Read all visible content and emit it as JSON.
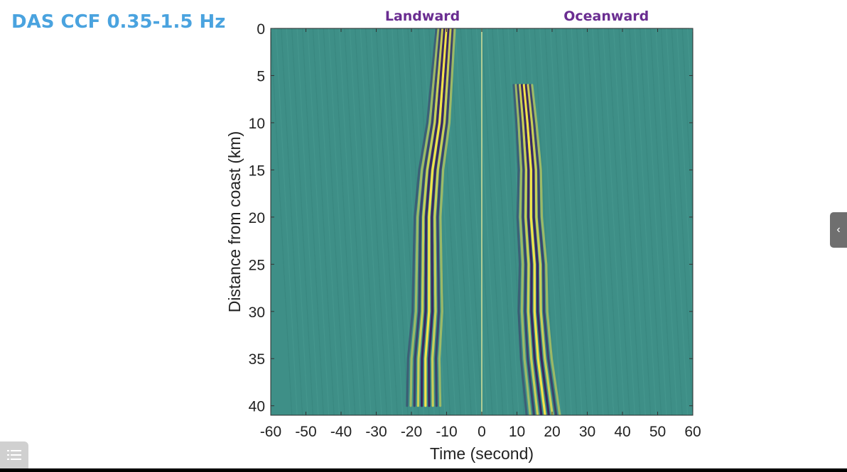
{
  "slide": {
    "title": "DAS CCF 0.35-1.5 Hz",
    "landward_label": "Landward",
    "oceanward_label": "Oceanward"
  },
  "colors": {
    "title": "#4aa3df",
    "annotation": "#6a2d91",
    "background_field": "#3e8f87",
    "positive": "#f4e34a",
    "negative": "#3a1a5c",
    "zero_line": "#d7e39a"
  },
  "icons": {
    "side_tab": "chevron-left-icon",
    "menu": "list-menu-icon"
  },
  "chart_data": {
    "type": "heatmap",
    "title": "",
    "xlabel": "Time (second)",
    "ylabel": "Distance from coast (km)",
    "xlim": [
      -60,
      60
    ],
    "ylim": [
      0,
      41
    ],
    "y_reversed": true,
    "xticks": [
      -60,
      -50,
      -40,
      -30,
      -20,
      -10,
      0,
      10,
      20,
      30,
      40,
      50,
      60
    ],
    "yticks": [
      0,
      5,
      10,
      15,
      20,
      25,
      30,
      35,
      40
    ],
    "colormap": "viridis-like (dark purple / teal / yellow)",
    "wavefronts": [
      {
        "name": "landward",
        "time_s": [
          -10,
          -11,
          -12,
          -14,
          -15,
          -15,
          -15,
          -16,
          -16
        ],
        "distance_km": [
          0,
          5,
          10,
          15,
          20,
          25,
          30,
          35,
          40
        ]
      },
      {
        "name": "oceanward",
        "time_s": [
          12,
          13,
          14,
          14,
          15,
          15,
          16,
          17,
          18
        ],
        "distance_km": [
          6,
          10,
          15,
          20,
          25,
          30,
          35,
          38,
          41
        ]
      }
    ]
  }
}
